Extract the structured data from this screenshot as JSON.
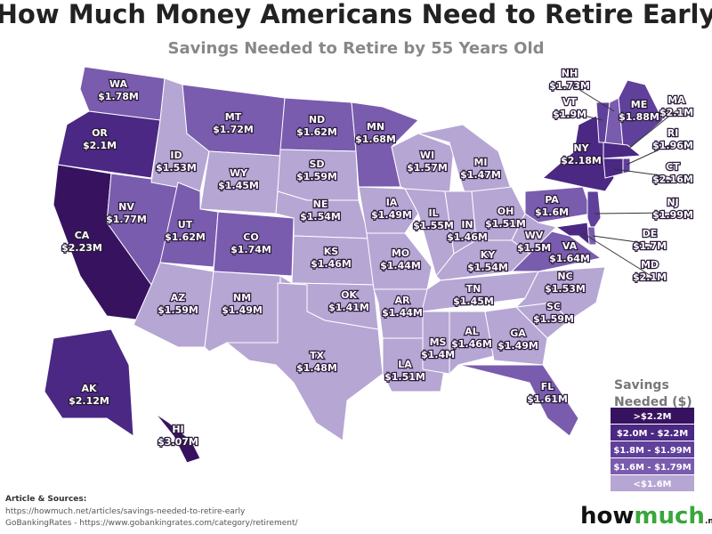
{
  "title": "How Much Money Americans Need to Retire Early",
  "subtitle": "Savings Needed to Retire by 55 Years Old",
  "states": [
    {
      "name": "WA",
      "value": "$1.78M",
      "color": "#7a5cae"
    },
    {
      "name": "OR",
      "value": "$2.1M",
      "color": "#4b2883"
    },
    {
      "name": "CA",
      "value": "$2.23M",
      "color": "#37135f"
    },
    {
      "name": "NV",
      "value": "$1.77M",
      "color": "#7a5cae"
    },
    {
      "name": "ID",
      "value": "$1.53M",
      "color": "#b6a6d4"
    },
    {
      "name": "MT",
      "value": "$1.72M",
      "color": "#7a5cae"
    },
    {
      "name": "WY",
      "value": "$1.45M",
      "color": "#b6a6d4"
    },
    {
      "name": "UT",
      "value": "$1.62M",
      "color": "#7a5cae"
    },
    {
      "name": "CO",
      "value": "$1.74M",
      "color": "#7a5cae"
    },
    {
      "name": "AZ",
      "value": "$1.59M",
      "color": "#b6a6d4"
    },
    {
      "name": "NM",
      "value": "$1.49M",
      "color": "#b6a6d4"
    },
    {
      "name": "ND",
      "value": "$1.62M",
      "color": "#7a5cae"
    },
    {
      "name": "SD",
      "value": "$1.59M",
      "color": "#b6a6d4"
    },
    {
      "name": "NE",
      "value": "$1.54M",
      "color": "#b6a6d4"
    },
    {
      "name": "KS",
      "value": "$1.46M",
      "color": "#b6a6d4"
    },
    {
      "name": "OK",
      "value": "$1.41M",
      "color": "#b6a6d4"
    },
    {
      "name": "TX",
      "value": "$1.48M",
      "color": "#b6a6d4"
    },
    {
      "name": "MN",
      "value": "$1.68M",
      "color": "#7a5cae"
    },
    {
      "name": "IA",
      "value": "$1.49M",
      "color": "#b6a6d4"
    },
    {
      "name": "MO",
      "value": "$1.44M",
      "color": "#b6a6d4"
    },
    {
      "name": "AR",
      "value": "$1.44M",
      "color": "#b6a6d4"
    },
    {
      "name": "LA",
      "value": "$1.51M",
      "color": "#b6a6d4"
    },
    {
      "name": "WI",
      "value": "$1.57M",
      "color": "#b6a6d4"
    },
    {
      "name": "IL",
      "value": "$1.55M",
      "color": "#b6a6d4"
    },
    {
      "name": "MI",
      "value": "$1.47M",
      "color": "#b6a6d4"
    },
    {
      "name": "IN",
      "value": "$1.46M",
      "color": "#b6a6d4"
    },
    {
      "name": "OH",
      "value": "$1.51M",
      "color": "#b6a6d4"
    },
    {
      "name": "KY",
      "value": "$1.54M",
      "color": "#b6a6d4"
    },
    {
      "name": "TN",
      "value": "$1.45M",
      "color": "#b6a6d4"
    },
    {
      "name": "MS",
      "value": "$1.4M",
      "color": "#b6a6d4"
    },
    {
      "name": "AL",
      "value": "$1.46M",
      "color": "#b6a6d4"
    },
    {
      "name": "GA",
      "value": "$1.49M",
      "color": "#b6a6d4"
    },
    {
      "name": "FL",
      "value": "$1.61M",
      "color": "#7a5cae"
    },
    {
      "name": "SC",
      "value": "$1.59M",
      "color": "#b6a6d4"
    },
    {
      "name": "NC",
      "value": "$1.53M",
      "color": "#b6a6d4"
    },
    {
      "name": "VA",
      "value": "$1.64M",
      "color": "#7a5cae"
    },
    {
      "name": "WV",
      "value": "$1.5M",
      "color": "#b6a6d4"
    },
    {
      "name": "PA",
      "value": "$1.6M",
      "color": "#7a5cae"
    },
    {
      "name": "NY",
      "value": "$2.18M",
      "color": "#4b2883"
    },
    {
      "name": "VT",
      "value": "$1.9M",
      "color": "#5f409b"
    },
    {
      "name": "NH",
      "value": "$1.73M",
      "color": "#7a5cae"
    },
    {
      "name": "ME",
      "value": "$1.88M",
      "color": "#5f409b"
    },
    {
      "name": "MA",
      "value": "$2.1M",
      "color": "#4b2883"
    },
    {
      "name": "CT",
      "value": "$2.16M",
      "color": "#4b2883"
    },
    {
      "name": "RI",
      "value": "$1.96M",
      "color": "#5f409b"
    },
    {
      "name": "NJ",
      "value": "$1.99M",
      "color": "#5f409b"
    },
    {
      "name": "DE",
      "value": "$1.7M",
      "color": "#7a5cae"
    },
    {
      "name": "MD",
      "value": "$2.1M",
      "color": "#4b2883"
    },
    {
      "name": "AK",
      "value": "$2.12M",
      "color": "#4b2883"
    },
    {
      "name": "HI",
      "value": "$3.07M",
      "color": "#37135f"
    }
  ],
  "legend": {
    "title": [
      "Savings",
      "Needed ($)"
    ],
    "items": [
      {
        "label": ">$2.2M",
        "color": "#37135f"
      },
      {
        "label": "$2.0M - $2.2M",
        "color": "#4b2883"
      },
      {
        "label": "$1.8M - $1.99M",
        "color": "#5f409b"
      },
      {
        "label": "$1.6M - $1.79M",
        "color": "#7a5cae"
      },
      {
        "label": "<$1.6M",
        "color": "#b6a6d4"
      }
    ]
  },
  "sources": {
    "heading": "Article & Sources:",
    "lines": [
      "https://howmuch.net/articles/savings-needed-to-retire-early",
      "GoBankingRates - https://www.gobankingrates.com/category/retirement/"
    ]
  },
  "logo": {
    "parts": [
      "how",
      "much",
      ".net"
    ]
  }
}
